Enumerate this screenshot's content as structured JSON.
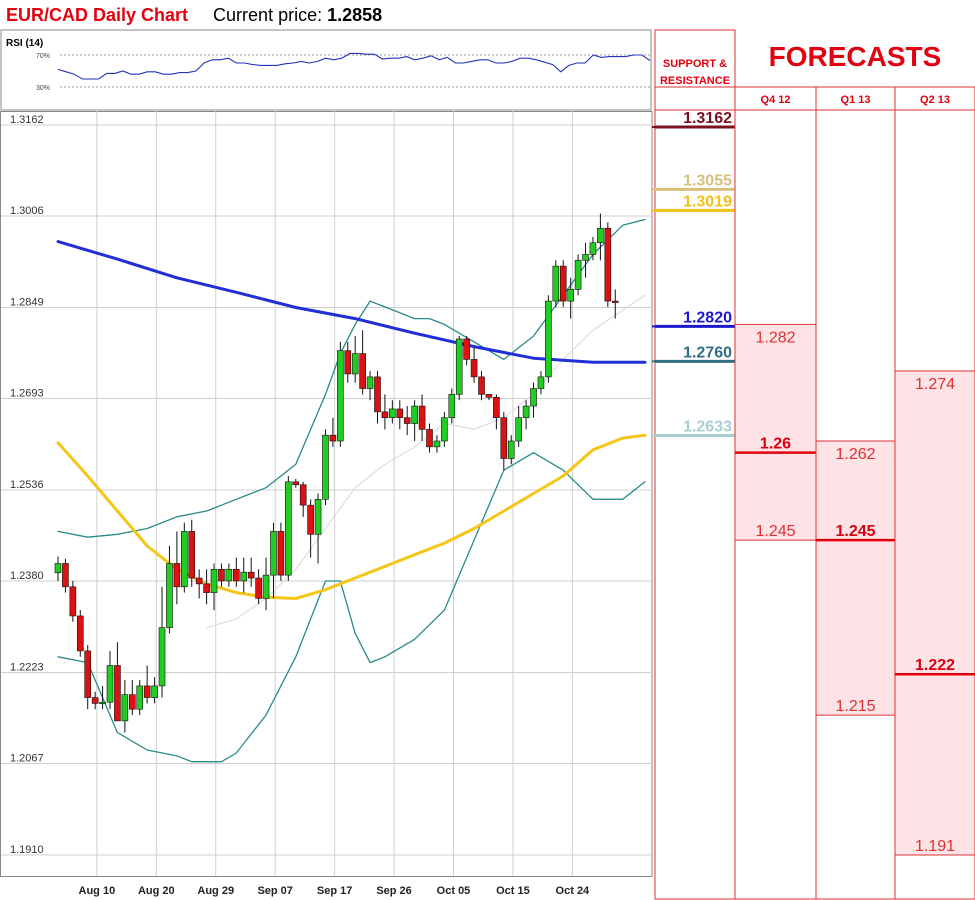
{
  "header": {
    "title": "EUR/CAD Daily Chart",
    "price_label": "Current price:",
    "price_value": "1.2858"
  },
  "rsi": {
    "label": "RSI (14)",
    "levels": [
      "70%",
      "30%"
    ],
    "level_values": [
      70,
      30
    ],
    "values": [
      52,
      49,
      46,
      40,
      40,
      40,
      47,
      47,
      50,
      46,
      46,
      49,
      49,
      46,
      46,
      48,
      48,
      50,
      60,
      64,
      64,
      66,
      60,
      60,
      58,
      57,
      57,
      57,
      59,
      60,
      62,
      60,
      62,
      66,
      64,
      66,
      72,
      72,
      71,
      71,
      65,
      66,
      66,
      68,
      64,
      66,
      69,
      64,
      67,
      60,
      60,
      62,
      64,
      64,
      60,
      60,
      62,
      66,
      66,
      64,
      61,
      58,
      49,
      57,
      60,
      60,
      70,
      67,
      68,
      68,
      68,
      70,
      70,
      63
    ]
  },
  "chart_data": {
    "type": "candlestick",
    "title": "EUR/CAD Daily Chart",
    "y_ticks": [
      "1.3162",
      "1.3006",
      "1.2849",
      "1.2693",
      "1.2536",
      "1.2380",
      "1.2223",
      "1.2067",
      "1.1910"
    ],
    "ylim": [
      1.191,
      1.3162
    ],
    "x_ticks": [
      {
        "label": "Aug 10",
        "index": 2
      },
      {
        "label": "Aug 20",
        "index": 10
      },
      {
        "label": "Aug 29",
        "index": 18
      },
      {
        "label": "Sep 07",
        "index": 26
      },
      {
        "label": "Sep 17",
        "index": 34
      },
      {
        "label": "Sep 26",
        "index": 42
      },
      {
        "label": "Oct 05",
        "index": 50
      },
      {
        "label": "Oct 15",
        "index": 58
      },
      {
        "label": "Oct 24",
        "index": 66
      }
    ],
    "grid": true,
    "candles": [
      [
        1.2394,
        1.2422,
        1.238,
        1.241
      ],
      [
        1.241,
        1.2418,
        1.236,
        1.237
      ],
      [
        1.237,
        1.238,
        1.231,
        1.232
      ],
      [
        1.232,
        1.233,
        1.225,
        1.226
      ],
      [
        1.226,
        1.227,
        1.216,
        1.218
      ],
      [
        1.218,
        1.219,
        1.216,
        1.217
      ],
      [
        1.217,
        1.22,
        1.216,
        1.2172
      ],
      [
        1.2172,
        1.226,
        1.216,
        1.2235
      ],
      [
        1.2235,
        1.2275,
        1.214,
        1.214
      ],
      [
        1.214,
        1.221,
        1.212,
        1.2185
      ],
      [
        1.2185,
        1.221,
        1.215,
        1.216
      ],
      [
        1.216,
        1.221,
        1.215,
        1.22
      ],
      [
        1.22,
        1.2235,
        1.217,
        1.218
      ],
      [
        1.218,
        1.2215,
        1.217,
        1.22
      ],
      [
        1.22,
        1.237,
        1.218,
        1.23
      ],
      [
        1.23,
        1.244,
        1.229,
        1.241
      ],
      [
        1.241,
        1.2465,
        1.234,
        1.237
      ],
      [
        1.237,
        1.248,
        1.236,
        1.2465
      ],
      [
        1.2465,
        1.2485,
        1.237,
        1.2385
      ],
      [
        1.2385,
        1.24,
        1.235,
        1.2375
      ],
      [
        1.2375,
        1.24,
        1.234,
        1.236
      ],
      [
        1.236,
        1.241,
        1.233,
        1.24
      ],
      [
        1.24,
        1.241,
        1.237,
        1.238
      ],
      [
        1.238,
        1.241,
        1.237,
        1.24
      ],
      [
        1.24,
        1.242,
        1.237,
        1.238
      ],
      [
        1.238,
        1.242,
        1.236,
        1.2395
      ],
      [
        1.2395,
        1.242,
        1.237,
        1.2385
      ],
      [
        1.2385,
        1.24,
        1.234,
        1.235
      ],
      [
        1.235,
        1.242,
        1.233,
        1.239
      ],
      [
        1.239,
        1.248,
        1.235,
        1.2465
      ],
      [
        1.2465,
        1.248,
        1.238,
        1.239
      ],
      [
        1.239,
        1.256,
        1.238,
        1.255
      ],
      [
        1.255,
        1.2555,
        1.254,
        1.2545
      ],
      [
        1.2545,
        1.255,
        1.249,
        1.251
      ],
      [
        1.251,
        1.252,
        1.242,
        1.246
      ],
      [
        1.246,
        1.253,
        1.241,
        1.252
      ],
      [
        1.252,
        1.264,
        1.251,
        1.263
      ],
      [
        1.263,
        1.266,
        1.261,
        1.262
      ],
      [
        1.262,
        1.279,
        1.261,
        1.2775
      ],
      [
        1.2775,
        1.279,
        1.272,
        1.2735
      ],
      [
        1.2735,
        1.28,
        1.272,
        1.277
      ],
      [
        1.277,
        1.281,
        1.27,
        1.271
      ],
      [
        1.271,
        1.274,
        1.269,
        1.273
      ],
      [
        1.273,
        1.274,
        1.265,
        1.267
      ],
      [
        1.267,
        1.27,
        1.264,
        1.266
      ],
      [
        1.266,
        1.269,
        1.265,
        1.2675
      ],
      [
        1.2675,
        1.269,
        1.264,
        1.266
      ],
      [
        1.266,
        1.268,
        1.263,
        1.265
      ],
      [
        1.265,
        1.269,
        1.262,
        1.268
      ],
      [
        1.268,
        1.27,
        1.262,
        1.264
      ],
      [
        1.264,
        1.265,
        1.26,
        1.261
      ],
      [
        1.261,
        1.263,
        1.26,
        1.262
      ],
      [
        1.262,
        1.267,
        1.261,
        1.266
      ],
      [
        1.266,
        1.271,
        1.265,
        1.27
      ],
      [
        1.27,
        1.28,
        1.269,
        1.2795
      ],
      [
        1.2795,
        1.28,
        1.275,
        1.276
      ],
      [
        1.276,
        1.278,
        1.272,
        1.273
      ],
      [
        1.273,
        1.274,
        1.269,
        1.27
      ],
      [
        1.27,
        1.27,
        1.269,
        1.2695
      ],
      [
        1.2695,
        1.27,
        1.264,
        1.266
      ],
      [
        1.266,
        1.267,
        1.257,
        1.259
      ],
      [
        1.259,
        1.263,
        1.258,
        1.262
      ],
      [
        1.262,
        1.268,
        1.261,
        1.266
      ],
      [
        1.266,
        1.269,
        1.264,
        1.268
      ],
      [
        1.268,
        1.272,
        1.266,
        1.271
      ],
      [
        1.271,
        1.274,
        1.27,
        1.273
      ],
      [
        1.273,
        1.287,
        1.272,
        1.286
      ],
      [
        1.286,
        1.293,
        1.285,
        1.292
      ],
      [
        1.292,
        1.293,
        1.285,
        1.286
      ],
      [
        1.286,
        1.29,
        1.283,
        1.288
      ],
      [
        1.288,
        1.294,
        1.287,
        1.293
      ],
      [
        1.293,
        1.296,
        1.29,
        1.294
      ],
      [
        1.294,
        1.297,
        1.293,
        1.296
      ],
      [
        1.296,
        1.301,
        1.293,
        1.2985
      ],
      [
        1.2985,
        1.2995,
        1.285,
        1.286
      ],
      [
        1.286,
        1.288,
        1.283,
        1.2858
      ]
    ],
    "overlays": {
      "ma_blue": [
        [
          0,
          1.2962
        ],
        [
          8,
          1.2932
        ],
        [
          16,
          1.29
        ],
        [
          24,
          1.2875
        ],
        [
          32,
          1.2849
        ],
        [
          40,
          1.283
        ],
        [
          48,
          1.2805
        ],
        [
          56,
          1.2782
        ],
        [
          64,
          1.2762
        ],
        [
          72,
          1.2755
        ],
        [
          79,
          1.2755
        ]
      ],
      "ma_yellow": [
        [
          0,
          1.2617
        ],
        [
          4,
          1.256
        ],
        [
          8,
          1.25
        ],
        [
          12,
          1.244
        ],
        [
          16,
          1.24
        ],
        [
          20,
          1.2375
        ],
        [
          24,
          1.236
        ],
        [
          28,
          1.2352
        ],
        [
          32,
          1.235
        ],
        [
          36,
          1.2365
        ],
        [
          40,
          1.2385
        ],
        [
          44,
          1.2405
        ],
        [
          48,
          1.2425
        ],
        [
          52,
          1.2445
        ],
        [
          56,
          1.247
        ],
        [
          60,
          1.25
        ],
        [
          64,
          1.253
        ],
        [
          68,
          1.256
        ],
        [
          72,
          1.2605
        ],
        [
          76,
          1.2625
        ],
        [
          79,
          1.263
        ]
      ],
      "bb_upper": [
        [
          0,
          1.2465
        ],
        [
          4,
          1.2455
        ],
        [
          8,
          1.246
        ],
        [
          12,
          1.247
        ],
        [
          16,
          1.249
        ],
        [
          20,
          1.25
        ],
        [
          24,
          1.252
        ],
        [
          28,
          1.254
        ],
        [
          32,
          1.258
        ],
        [
          36,
          1.27
        ],
        [
          38,
          1.277
        ],
        [
          40,
          1.282
        ],
        [
          42,
          1.286
        ],
        [
          44,
          1.285
        ],
        [
          48,
          1.283
        ],
        [
          50,
          1.283
        ],
        [
          52,
          1.282
        ],
        [
          56,
          1.279
        ],
        [
          60,
          1.276
        ],
        [
          64,
          1.28
        ],
        [
          68,
          1.287
        ],
        [
          72,
          1.294
        ],
        [
          76,
          1.299
        ],
        [
          79,
          1.3
        ]
      ],
      "bb_lower": [
        [
          0,
          1.225
        ],
        [
          4,
          1.224
        ],
        [
          6,
          1.218
        ],
        [
          8,
          1.212
        ],
        [
          12,
          1.209
        ],
        [
          16,
          1.208
        ],
        [
          18,
          1.207
        ],
        [
          22,
          1.207
        ],
        [
          24,
          1.2085
        ],
        [
          28,
          1.215
        ],
        [
          32,
          1.225
        ],
        [
          36,
          1.238
        ],
        [
          38,
          1.238
        ],
        [
          40,
          1.229
        ],
        [
          42,
          1.224
        ],
        [
          44,
          1.225
        ],
        [
          48,
          1.228
        ],
        [
          52,
          1.233
        ],
        [
          56,
          1.245
        ],
        [
          60,
          1.257
        ],
        [
          64,
          1.26
        ],
        [
          68,
          1.257
        ],
        [
          72,
          1.252
        ],
        [
          76,
          1.252
        ],
        [
          79,
          1.255
        ]
      ],
      "bb_mid": [
        [
          20,
          1.23
        ],
        [
          24,
          1.2315
        ],
        [
          28,
          1.235
        ],
        [
          32,
          1.24
        ],
        [
          36,
          1.247
        ],
        [
          40,
          1.254
        ],
        [
          44,
          1.258
        ],
        [
          48,
          1.261
        ],
        [
          52,
          1.265
        ],
        [
          56,
          1.264
        ],
        [
          60,
          1.266
        ],
        [
          64,
          1.27
        ],
        [
          68,
          1.276
        ],
        [
          72,
          1.281
        ],
        [
          79,
          1.287
        ]
      ]
    }
  },
  "support_resistance": {
    "header_line1": "SUPPORT &",
    "header_line2": "RESISTANCE",
    "levels": [
      {
        "label": "1.3162",
        "value": 1.3162,
        "color": "#7a1020"
      },
      {
        "label": "1.3055",
        "value": 1.3055,
        "color": "#d8c07a"
      },
      {
        "label": "1.3019",
        "value": 1.3019,
        "color": "#f2c01a"
      },
      {
        "label": "1.2820",
        "value": 1.282,
        "color": "#1a1acc"
      },
      {
        "label": "1.2760",
        "value": 1.276,
        "color": "#2f6f86"
      },
      {
        "label": "1.2633",
        "value": 1.2633,
        "color": "#a8cfd1"
      }
    ]
  },
  "forecasts": {
    "title": "FORECASTS",
    "columns": [
      {
        "label": "Q4 12",
        "high": "1.282",
        "mid": "1.26",
        "low": "1.245",
        "high_val": 1.282,
        "mid_val": 1.26,
        "low_val": 1.245
      },
      {
        "label": "Q1 13",
        "high": "1.262",
        "mid": "1.245",
        "low": "1.215",
        "high_val": 1.262,
        "mid_val": 1.245,
        "low_val": 1.215
      },
      {
        "label": "Q2 13",
        "high": "1.274",
        "mid": "1.222",
        "low": "1.191",
        "high_val": 1.274,
        "mid_val": 1.222,
        "low_val": 1.191
      }
    ]
  },
  "colors": {
    "accent": "#e3000f",
    "bull": "#22cc22",
    "bear": "#dd1111",
    "ma_blue": "#1f2fd6",
    "ma_yellow": "#f5c518",
    "bb": "#2a8a8a",
    "forecast_fill": "#fde3e5"
  }
}
